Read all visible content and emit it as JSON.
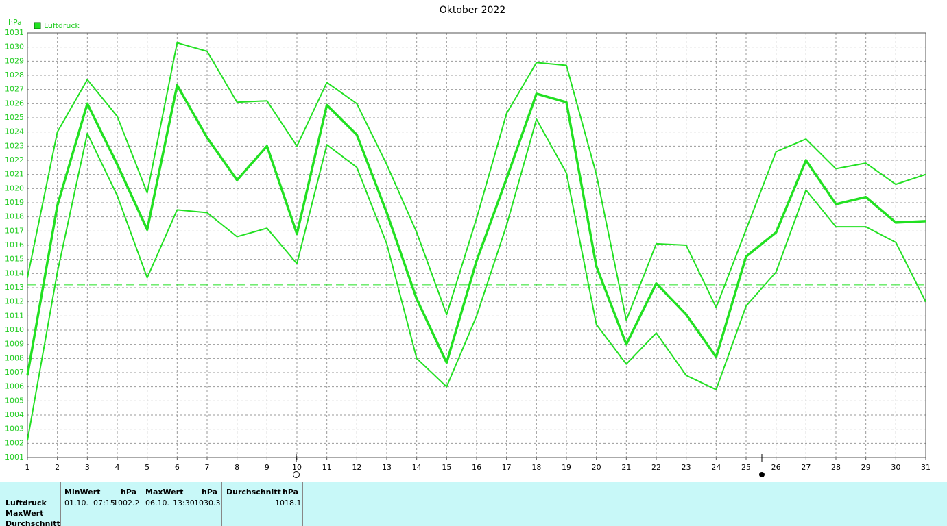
{
  "chart_data": {
    "type": "line",
    "title": "Oktober 2022",
    "y_unit": "hPa",
    "x": [
      1,
      2,
      3,
      4,
      5,
      6,
      7,
      8,
      9,
      10,
      11,
      12,
      13,
      14,
      15,
      16,
      17,
      18,
      19,
      20,
      21,
      22,
      23,
      24,
      25,
      26,
      27,
      28,
      29,
      30,
      31
    ],
    "xlim": [
      1,
      31
    ],
    "series": [
      {
        "name": "Luftdruck",
        "color": "#22e022",
        "values": [
          1006.8,
          1018.8,
          1026.0,
          1021.7,
          1017.1,
          1027.3,
          1023.6,
          1020.6,
          1023.0,
          1016.8,
          1025.9,
          1023.8,
          1018.3,
          1012.2,
          1007.7,
          1014.9,
          1020.7,
          1026.7,
          1026.1,
          1014.5,
          1009.0,
          1013.3,
          1011.1,
          1008.1,
          1015.2,
          1016.9,
          1022.0,
          1018.9,
          1019.4,
          1017.6,
          1017.7
        ]
      },
      {
        "color": "#22e022",
        "values": [
          1013.7,
          1024.0,
          1027.7,
          1025.1,
          1019.7,
          1030.3,
          1029.7,
          1026.1,
          1026.2,
          1023.0,
          1027.5,
          1026.0,
          1021.7,
          1016.9,
          1011.1,
          1017.9,
          1025.3,
          1028.9,
          1028.7,
          1021.0,
          1010.7,
          1016.1,
          1016.0,
          1011.6,
          1017.1,
          1022.6,
          1023.5,
          1021.4,
          1021.8,
          1020.3,
          1021.0
        ]
      },
      {
        "color": "#22e022",
        "values": [
          1002.2,
          1014.1,
          1023.9,
          1019.5,
          1013.7,
          1018.5,
          1018.3,
          1016.6,
          1017.2,
          1014.7,
          1023.1,
          1021.5,
          1016.1,
          1008.0,
          1006.0,
          1011.0,
          1017.4,
          1024.9,
          1021.1,
          1010.4,
          1007.6,
          1009.8,
          1006.8,
          1005.8,
          1011.7,
          1014.1,
          1019.9,
          1017.3,
          1017.3,
          1016.2,
          1012.0
        ]
      }
    ],
    "reference_line": 1013.2,
    "ylim": [
      1001,
      1031
    ],
    "yticks": [
      1001,
      1002,
      1003,
      1004,
      1005,
      1006,
      1007,
      1008,
      1009,
      1010,
      1011,
      1012,
      1013,
      1014,
      1015,
      1016,
      1017,
      1018,
      1019,
      1020,
      1021,
      1022,
      1023,
      1024,
      1025,
      1026,
      1027,
      1028,
      1029,
      1030,
      1031
    ],
    "grid": true,
    "legend": "top-left"
  },
  "stats_table": {
    "row_labels": [
      "Luftdruck",
      "MaxWert",
      "Durchschnitt"
    ],
    "columns": [
      {
        "header": "MinWert",
        "unit": "hPa",
        "date": "01.10.",
        "time": "07:15",
        "value": 1002.2
      },
      {
        "header": "MaxWert",
        "unit": "hPa",
        "date": "06.10.",
        "time": "13:30",
        "value": 1030.3
      },
      {
        "header": "Durchschnitt",
        "unit": "hPa",
        "value": 1018.1
      }
    ]
  }
}
